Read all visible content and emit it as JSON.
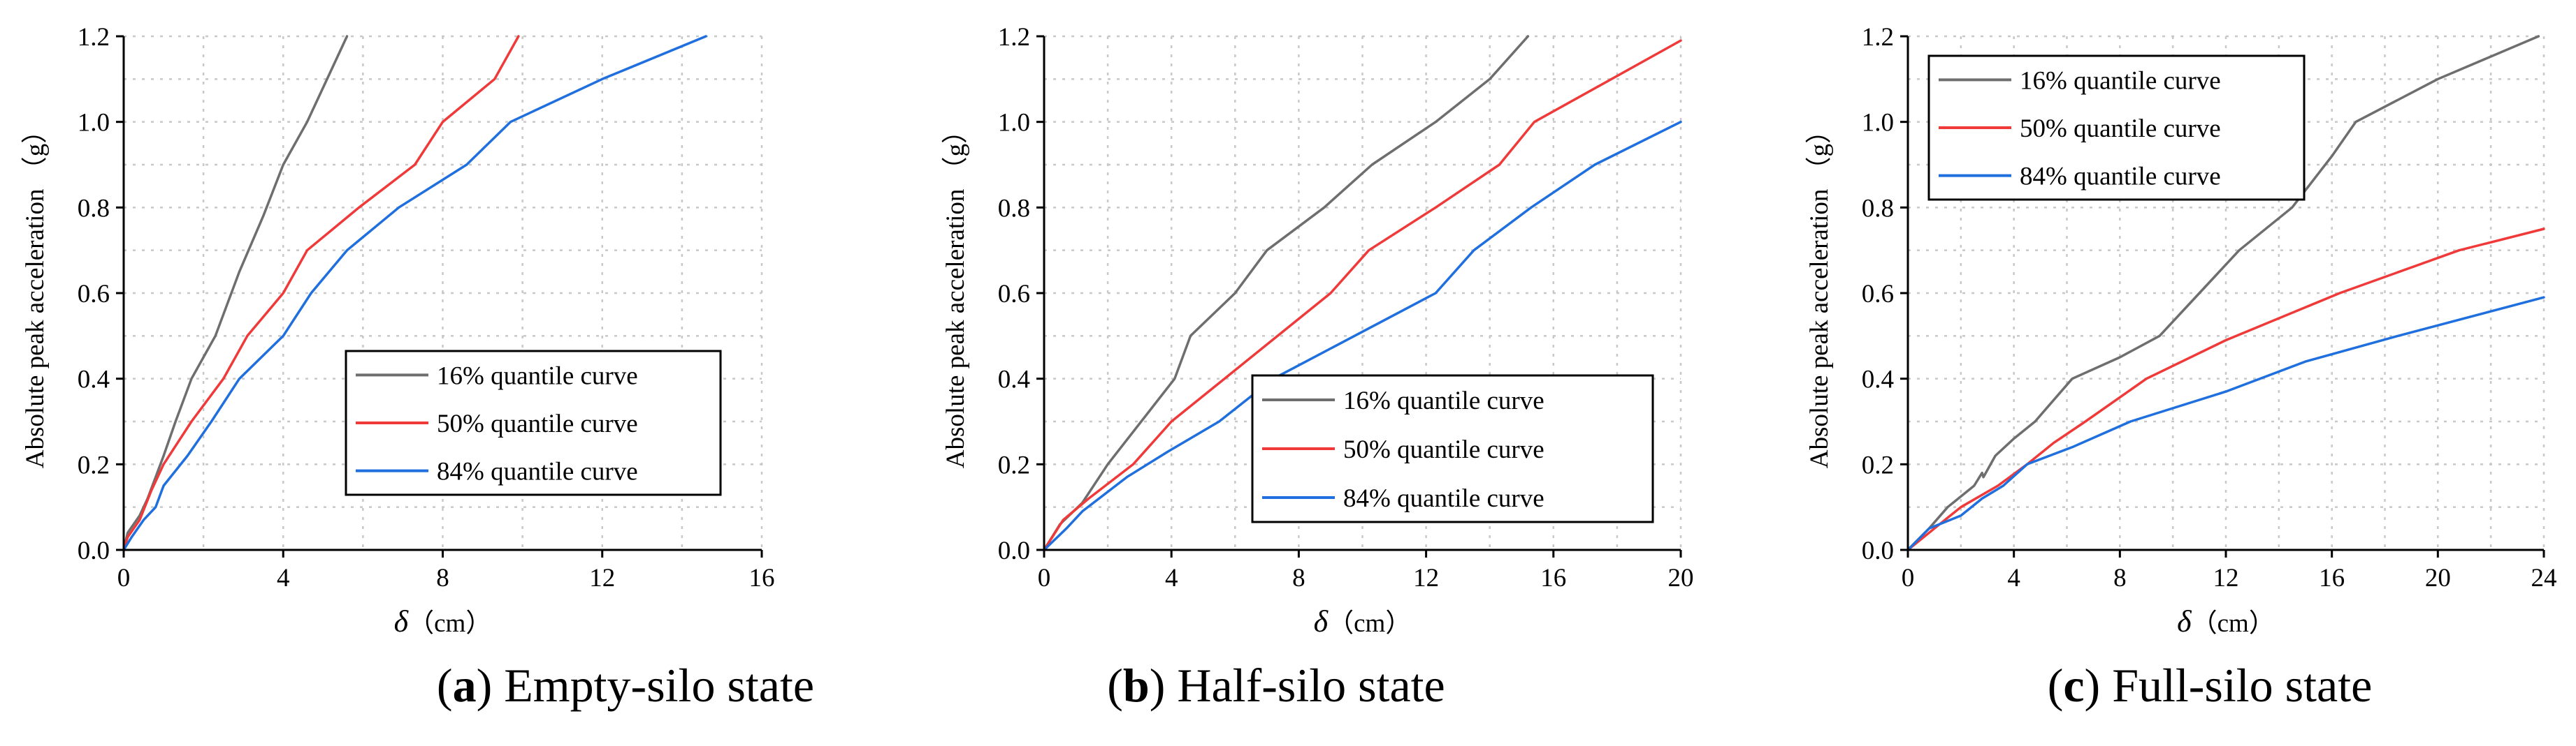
{
  "chart_data": [
    {
      "type": "line",
      "panel": "a",
      "caption": {
        "letter": "a",
        "text": "Empty-silo state"
      },
      "xlabel": {
        "symbol": "δ",
        "unit": "（cm）"
      },
      "ylabel": "Absolute peak acceleration （g）",
      "xlim": [
        0,
        16
      ],
      "ylim": [
        0,
        1.2
      ],
      "xticks": [
        "0",
        "4",
        "8",
        "12",
        "16"
      ],
      "yticks": [
        "0.0",
        "0.2",
        "0.4",
        "0.6",
        "0.8",
        "1.0",
        "1.2"
      ],
      "grid": true,
      "legend_position": "lower-right",
      "series": [
        {
          "name": "16% quantile curve",
          "color": "#6e6e6e",
          "x": [
            0,
            0.1,
            0.4,
            0.6,
            0.8,
            1.0,
            1.3,
            1.7,
            2.3,
            2.9,
            3.5,
            4.0,
            4.6,
            5.0,
            5.6
          ],
          "y": [
            0,
            0.04,
            0.08,
            0.12,
            0.17,
            0.22,
            0.3,
            0.4,
            0.5,
            0.65,
            0.78,
            0.9,
            1.0,
            1.08,
            1.2
          ]
        },
        {
          "name": "50% quantile curve",
          "color": "#f03a3a",
          "x": [
            0,
            0.1,
            0.4,
            0.7,
            1.0,
            1.7,
            2.5,
            3.1,
            4.0,
            4.6,
            5.9,
            7.3,
            8.0,
            9.3,
            9.9
          ],
          "y": [
            0,
            0.03,
            0.07,
            0.14,
            0.2,
            0.3,
            0.4,
            0.5,
            0.6,
            0.7,
            0.8,
            0.9,
            1.0,
            1.1,
            1.2
          ]
        },
        {
          "name": "84% quantile curve",
          "color": "#1f6fde",
          "x": [
            0,
            0.2,
            0.5,
            0.8,
            1.0,
            1.6,
            2.2,
            2.9,
            4.0,
            4.7,
            5.6,
            6.9,
            8.6,
            9.7,
            12.0,
            14.6
          ],
          "y": [
            0,
            0.03,
            0.07,
            0.1,
            0.15,
            0.22,
            0.3,
            0.4,
            0.5,
            0.6,
            0.7,
            0.8,
            0.9,
            1.0,
            1.1,
            1.2
          ]
        }
      ]
    },
    {
      "type": "line",
      "panel": "b",
      "caption": {
        "letter": "b",
        "text": "Half-silo state"
      },
      "xlabel": {
        "symbol": "δ",
        "unit": "（cm）"
      },
      "ylabel": "Absolute peak acceleration （g）",
      "xlim": [
        0,
        20
      ],
      "ylim": [
        0,
        1.2
      ],
      "xticks": [
        "0",
        "4",
        "8",
        "12",
        "16",
        "20"
      ],
      "yticks": [
        "0.0",
        "0.2",
        "0.4",
        "0.6",
        "0.8",
        "1.0",
        "1.2"
      ],
      "grid": true,
      "legend_position": "lower-right",
      "series": [
        {
          "name": "16% quantile curve",
          "color": "#6e6e6e",
          "x": [
            0,
            0.5,
            1.2,
            2.0,
            4.1,
            4.6,
            6.0,
            7.0,
            8.8,
            10.3,
            12.3,
            14.0,
            15.2
          ],
          "y": [
            0,
            0.06,
            0.11,
            0.2,
            0.4,
            0.5,
            0.6,
            0.7,
            0.8,
            0.9,
            1.0,
            1.1,
            1.2
          ]
        },
        {
          "name": "50% quantile curve",
          "color": "#f03a3a",
          "x": [
            0,
            0.6,
            1.4,
            2.8,
            4.0,
            9.0,
            10.2,
            12.3,
            14.3,
            15.4,
            20.0
          ],
          "y": [
            0,
            0.07,
            0.12,
            0.2,
            0.3,
            0.6,
            0.7,
            0.8,
            0.9,
            1.0,
            1.19
          ]
        },
        {
          "name": "84% quantile curve",
          "color": "#1f6fde",
          "x": [
            0,
            0.7,
            1.2,
            2.6,
            3.9,
            5.5,
            7.2,
            12.3,
            13.5,
            15.3,
            17.3,
            20.0
          ],
          "y": [
            0,
            0.05,
            0.09,
            0.17,
            0.23,
            0.3,
            0.4,
            0.6,
            0.7,
            0.8,
            0.9,
            1.0
          ]
        }
      ]
    },
    {
      "type": "line",
      "panel": "c",
      "caption": {
        "letter": "c",
        "text": "Full-silo state"
      },
      "xlabel": {
        "symbol": "δ",
        "unit": "（cm）"
      },
      "ylabel": "Absolute peak acceleration （g）",
      "xlim": [
        0,
        24
      ],
      "ylim": [
        0,
        1.2
      ],
      "xticks": [
        "0",
        "4",
        "8",
        "12",
        "16",
        "20",
        "24"
      ],
      "yticks": [
        "0.0",
        "0.2",
        "0.4",
        "0.6",
        "0.8",
        "1.0",
        "1.2"
      ],
      "grid": true,
      "legend_position": "top-left",
      "series": [
        {
          "name": "16% quantile curve",
          "color": "#6e6e6e",
          "x": [
            0,
            0.8,
            1.5,
            2.5,
            2.8,
            2.85,
            3.3,
            4.0,
            4.8,
            6.2,
            8.0,
            9.5,
            11.0,
            12.5,
            14.5,
            16.0,
            16.9,
            20.0,
            23.8
          ],
          "y": [
            0,
            0.05,
            0.1,
            0.15,
            0.18,
            0.17,
            0.22,
            0.26,
            0.3,
            0.4,
            0.45,
            0.5,
            0.6,
            0.7,
            0.8,
            0.92,
            1.0,
            1.1,
            1.2
          ]
        },
        {
          "name": "50% quantile curve",
          "color": "#f03a3a",
          "x": [
            0,
            1.0,
            2.0,
            3.4,
            4.5,
            5.5,
            6.7,
            9.0,
            12.0,
            16.3,
            20.8,
            24.0
          ],
          "y": [
            0,
            0.05,
            0.1,
            0.15,
            0.2,
            0.25,
            0.3,
            0.4,
            0.49,
            0.6,
            0.7,
            0.75
          ]
        },
        {
          "name": "84% quantile curve",
          "color": "#1f6fde",
          "x": [
            0,
            0.8,
            2.0,
            2.8,
            3.6,
            4.5,
            6.2,
            8.4,
            12.0,
            15.0,
            18.5,
            24.0
          ],
          "y": [
            0,
            0.05,
            0.08,
            0.12,
            0.15,
            0.2,
            0.24,
            0.3,
            0.37,
            0.44,
            0.5,
            0.59
          ]
        }
      ]
    }
  ]
}
